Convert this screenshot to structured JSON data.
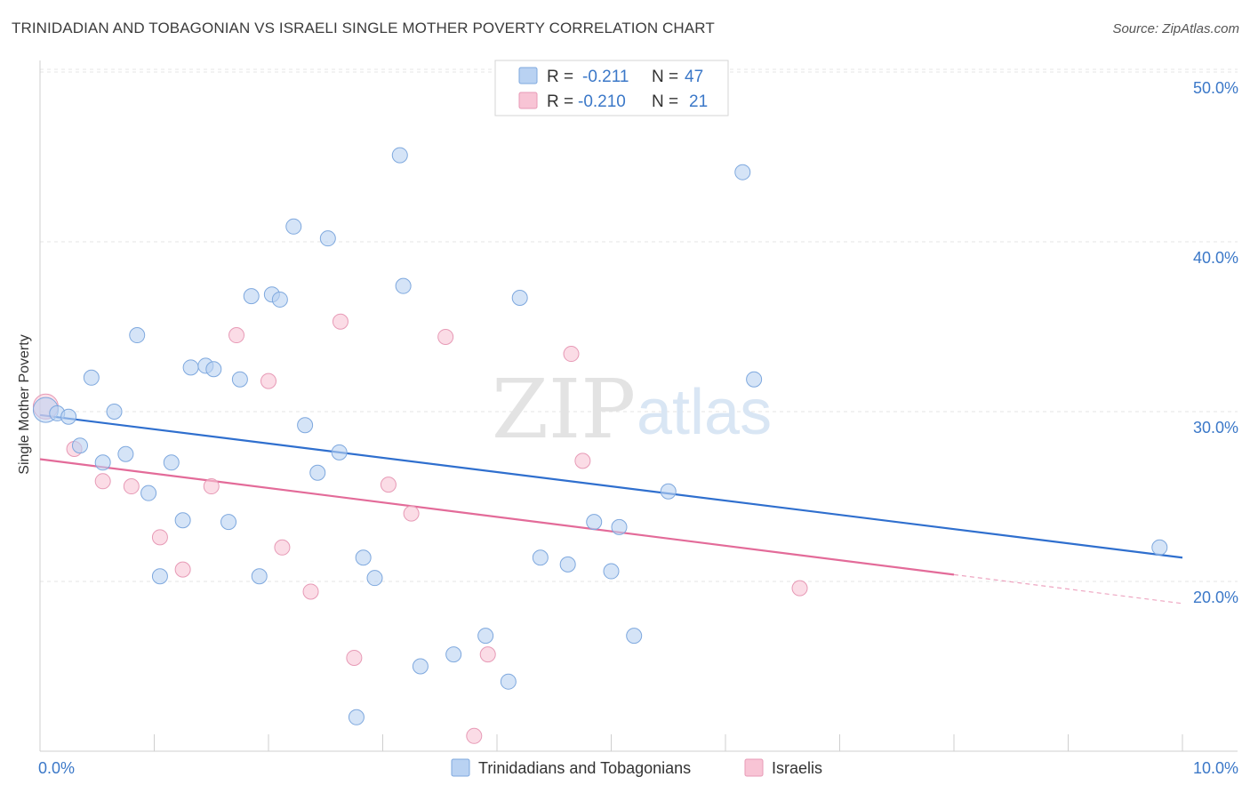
{
  "title": "TRINIDADIAN AND TOBAGONIAN VS ISRAELI SINGLE MOTHER POVERTY CORRELATION CHART",
  "source": "Source: ZipAtlas.com",
  "watermark": {
    "zip": "ZIP",
    "atlas": "atlas"
  },
  "colors": {
    "blue": "#3b78c8",
    "blue_fill": "#b9d2f2",
    "blue_line": "#2f6fce",
    "pink": "#e06c97",
    "pink_fill": "#f8c4d5",
    "pink_line": "#e36b99"
  },
  "legend_box": {
    "row1": {
      "r_label": "R =",
      "r_value": "-0.211",
      "n_label": "N =",
      "n_value": "47"
    },
    "row2": {
      "r_label": "R =",
      "r_value": "-0.210",
      "n_label": "N =",
      "n_value": "21"
    }
  },
  "chart_data": {
    "type": "scatter",
    "title": "TRINIDADIAN AND TOBAGONIAN VS ISRAELI SINGLE MOTHER POVERTY CORRELATION CHART",
    "xlabel": "",
    "ylabel": "Single Mother Poverty",
    "xlim": [
      0,
      10
    ],
    "ylim": [
      11,
      51.5
    ],
    "x_tick_labels": [
      {
        "value": 0,
        "label": "0.0%"
      },
      {
        "value": 10,
        "label": "10.0%"
      }
    ],
    "y_tick_labels": [
      {
        "value": 20,
        "label": "20.0%"
      },
      {
        "value": 30,
        "label": "30.0%"
      },
      {
        "value": 40,
        "label": "40.0%"
      },
      {
        "value": 50,
        "label": "50.0%"
      }
    ],
    "grid": true,
    "legend_position": "bottom-center",
    "series": [
      {
        "name": "Trinidadians and Tobagonians",
        "color": "#3b78c8",
        "trend": {
          "x": [
            0,
            10
          ],
          "y": [
            29.8,
            21.4
          ]
        },
        "points": [
          {
            "x": 0.05,
            "y": 30.1
          },
          {
            "x": 0.15,
            "y": 29.9
          },
          {
            "x": 0.25,
            "y": 29.7
          },
          {
            "x": 0.35,
            "y": 28.0
          },
          {
            "x": 0.45,
            "y": 32.0
          },
          {
            "x": 0.55,
            "y": 27.0
          },
          {
            "x": 0.65,
            "y": 30.0
          },
          {
            "x": 0.75,
            "y": 27.5
          },
          {
            "x": 0.85,
            "y": 34.5
          },
          {
            "x": 0.95,
            "y": 25.2
          },
          {
            "x": 1.05,
            "y": 20.3
          },
          {
            "x": 1.15,
            "y": 27.0
          },
          {
            "x": 1.25,
            "y": 23.6
          },
          {
            "x": 1.32,
            "y": 32.6
          },
          {
            "x": 1.45,
            "y": 32.7
          },
          {
            "x": 1.52,
            "y": 32.5
          },
          {
            "x": 1.65,
            "y": 23.5
          },
          {
            "x": 1.75,
            "y": 31.9
          },
          {
            "x": 1.85,
            "y": 36.8
          },
          {
            "x": 1.92,
            "y": 20.3
          },
          {
            "x": 2.03,
            "y": 36.9
          },
          {
            "x": 2.1,
            "y": 36.6
          },
          {
            "x": 2.22,
            "y": 40.9
          },
          {
            "x": 2.32,
            "y": 29.2
          },
          {
            "x": 2.43,
            "y": 26.4
          },
          {
            "x": 2.52,
            "y": 40.2
          },
          {
            "x": 2.62,
            "y": 27.6
          },
          {
            "x": 2.77,
            "y": 12.0
          },
          {
            "x": 2.83,
            "y": 21.4
          },
          {
            "x": 2.93,
            "y": 20.2
          },
          {
            "x": 3.15,
            "y": 45.1
          },
          {
            "x": 3.18,
            "y": 37.4
          },
          {
            "x": 3.33,
            "y": 15.0
          },
          {
            "x": 3.62,
            "y": 15.7
          },
          {
            "x": 3.9,
            "y": 16.8
          },
          {
            "x": 4.1,
            "y": 14.1
          },
          {
            "x": 4.2,
            "y": 36.7
          },
          {
            "x": 4.38,
            "y": 21.4
          },
          {
            "x": 4.62,
            "y": 21.0
          },
          {
            "x": 4.85,
            "y": 23.5
          },
          {
            "x": 5.0,
            "y": 20.6
          },
          {
            "x": 5.07,
            "y": 23.2
          },
          {
            "x": 5.2,
            "y": 16.8
          },
          {
            "x": 5.5,
            "y": 25.3
          },
          {
            "x": 6.15,
            "y": 44.1
          },
          {
            "x": 6.25,
            "y": 31.9
          },
          {
            "x": 9.8,
            "y": 22.0
          }
        ]
      },
      {
        "name": "Israelis",
        "color": "#e06c97",
        "trend": {
          "x": [
            0,
            8.0
          ],
          "y": [
            27.2,
            20.4
          ]
        },
        "trend_dashed": {
          "x": [
            8.0,
            10
          ],
          "y": [
            20.4,
            18.7
          ]
        },
        "points": [
          {
            "x": 0.05,
            "y": 30.3
          },
          {
            "x": 0.3,
            "y": 27.8
          },
          {
            "x": 0.55,
            "y": 25.9
          },
          {
            "x": 0.8,
            "y": 25.6
          },
          {
            "x": 1.05,
            "y": 22.6
          },
          {
            "x": 1.25,
            "y": 20.7
          },
          {
            "x": 1.5,
            "y": 25.6
          },
          {
            "x": 1.72,
            "y": 34.5
          },
          {
            "x": 2.0,
            "y": 31.8
          },
          {
            "x": 2.12,
            "y": 22.0
          },
          {
            "x": 2.37,
            "y": 19.4
          },
          {
            "x": 2.63,
            "y": 35.3
          },
          {
            "x": 2.75,
            "y": 15.5
          },
          {
            "x": 3.05,
            "y": 25.7
          },
          {
            "x": 3.25,
            "y": 24.0
          },
          {
            "x": 3.55,
            "y": 34.4
          },
          {
            "x": 3.8,
            "y": 10.9
          },
          {
            "x": 3.92,
            "y": 15.7
          },
          {
            "x": 4.65,
            "y": 33.4
          },
          {
            "x": 4.75,
            "y": 27.1
          },
          {
            "x": 6.65,
            "y": 19.6
          }
        ]
      }
    ]
  }
}
